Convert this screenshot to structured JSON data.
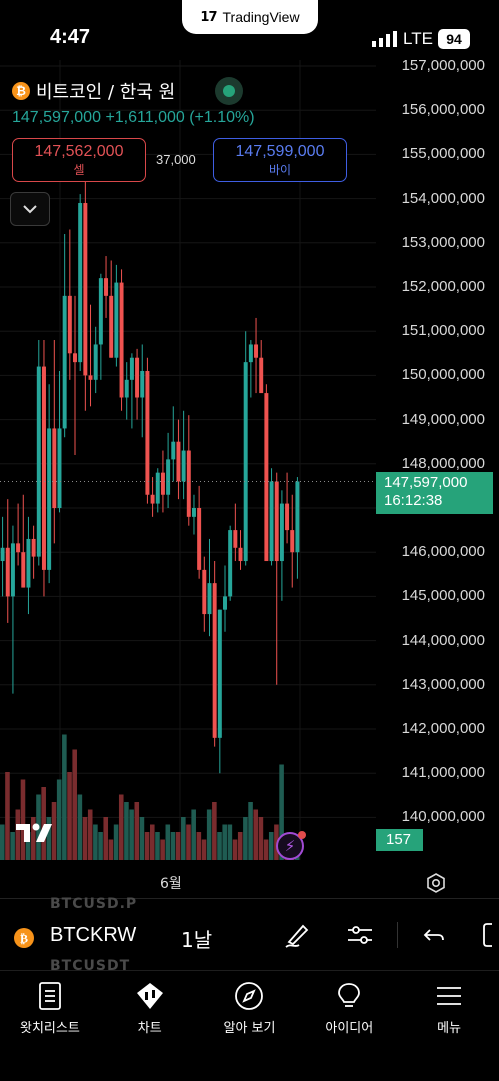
{
  "status": {
    "time": "4:47",
    "network": "LTE",
    "battery": "94"
  },
  "brand": {
    "logo": "17",
    "name": "TradingView"
  },
  "symbol": {
    "coin_glyph": "₿",
    "title": "비트코인 / 한국 원",
    "price": "147,597,000",
    "change": "+1,611,000 (+1.10%)",
    "market_status": "open"
  },
  "quote": {
    "sell_price": "147,562,000",
    "sell_label": "셀",
    "spread": "37,000",
    "buy_price": "147,599,000",
    "buy_label": "바이"
  },
  "axis": {
    "ticks": [
      "157,000,000",
      "156,000,000",
      "155,000,000",
      "154,000,000",
      "153,000,000",
      "152,000,000",
      "151,000,000",
      "150,000,000",
      "149,000,000",
      "148,000,000",
      "146,000,000",
      "145,000,000",
      "144,000,000",
      "143,000,000",
      "142,000,000",
      "141,000,000",
      "140,000,000"
    ],
    "current_price": "147,597,000",
    "countdown": "16:12:38",
    "volume_value": "157",
    "month_label": "6월"
  },
  "colors": {
    "up": "#26a69a",
    "down": "#ef5350",
    "sell": "#e25256",
    "buy": "#5a7cf0"
  },
  "chart_data": {
    "type": "candlestick",
    "ylim": [
      139600000,
      157300000
    ],
    "candles": [
      {
        "o": 145800000,
        "h": 146800000,
        "l": 145000000,
        "c": 146100000
      },
      {
        "o": 146100000,
        "h": 147200000,
        "l": 144400000,
        "c": 145000000
      },
      {
        "o": 145000000,
        "h": 146600000,
        "l": 142800000,
        "c": 146200000
      },
      {
        "o": 146200000,
        "h": 147100000,
        "l": 145700000,
        "c": 146000000
      },
      {
        "o": 146000000,
        "h": 147300000,
        "l": 145200000,
        "c": 145200000
      },
      {
        "o": 145200000,
        "h": 146800000,
        "l": 144600000,
        "c": 146300000
      },
      {
        "o": 146300000,
        "h": 146600000,
        "l": 145400000,
        "c": 145900000
      },
      {
        "o": 145900000,
        "h": 150800000,
        "l": 145700000,
        "c": 150200000
      },
      {
        "o": 150200000,
        "h": 150800000,
        "l": 145000000,
        "c": 145600000
      },
      {
        "o": 145600000,
        "h": 149800000,
        "l": 145300000,
        "c": 148800000
      },
      {
        "o": 148800000,
        "h": 150800000,
        "l": 146200000,
        "c": 147000000
      },
      {
        "o": 147000000,
        "h": 150100000,
        "l": 146900000,
        "c": 148800000
      },
      {
        "o": 148800000,
        "h": 153200000,
        "l": 148600000,
        "c": 151800000
      },
      {
        "o": 151800000,
        "h": 153300000,
        "l": 149900000,
        "c": 150500000
      },
      {
        "o": 150500000,
        "h": 151800000,
        "l": 148200000,
        "c": 150300000
      },
      {
        "o": 150300000,
        "h": 154100000,
        "l": 150100000,
        "c": 153900000
      },
      {
        "o": 153900000,
        "h": 154600000,
        "l": 149200000,
        "c": 150000000
      },
      {
        "o": 150000000,
        "h": 151600000,
        "l": 149300000,
        "c": 149900000
      },
      {
        "o": 149900000,
        "h": 151100000,
        "l": 149600000,
        "c": 150700000
      },
      {
        "o": 150700000,
        "h": 152300000,
        "l": 149900000,
        "c": 152200000
      },
      {
        "o": 152200000,
        "h": 152700000,
        "l": 151300000,
        "c": 151800000
      },
      {
        "o": 151800000,
        "h": 152600000,
        "l": 150400000,
        "c": 150400000
      },
      {
        "o": 150400000,
        "h": 152500000,
        "l": 150200000,
        "c": 152100000
      },
      {
        "o": 152100000,
        "h": 152400000,
        "l": 149200000,
        "c": 149500000
      },
      {
        "o": 149500000,
        "h": 150300000,
        "l": 149000000,
        "c": 149900000
      },
      {
        "o": 149900000,
        "h": 150500000,
        "l": 148800000,
        "c": 150400000
      },
      {
        "o": 150400000,
        "h": 150600000,
        "l": 149000000,
        "c": 149500000
      },
      {
        "o": 149500000,
        "h": 150700000,
        "l": 148600000,
        "c": 150100000
      },
      {
        "o": 150100000,
        "h": 150400000,
        "l": 147100000,
        "c": 147300000
      },
      {
        "o": 147300000,
        "h": 147700000,
        "l": 146800000,
        "c": 147100000
      },
      {
        "o": 147100000,
        "h": 147900000,
        "l": 146900000,
        "c": 147800000
      },
      {
        "o": 147800000,
        "h": 148300000,
        "l": 146900000,
        "c": 147300000
      },
      {
        "o": 147300000,
        "h": 148700000,
        "l": 147000000,
        "c": 148100000
      },
      {
        "o": 148100000,
        "h": 149300000,
        "l": 147600000,
        "c": 148500000
      },
      {
        "o": 148500000,
        "h": 149000000,
        "l": 147200000,
        "c": 147600000
      },
      {
        "o": 147600000,
        "h": 149200000,
        "l": 147200000,
        "c": 148300000
      },
      {
        "o": 148300000,
        "h": 149100000,
        "l": 146600000,
        "c": 146800000
      },
      {
        "o": 146800000,
        "h": 147300000,
        "l": 146400000,
        "c": 147000000
      },
      {
        "o": 147000000,
        "h": 147500000,
        "l": 145400000,
        "c": 145600000
      },
      {
        "o": 145600000,
        "h": 145900000,
        "l": 144200000,
        "c": 144600000
      },
      {
        "o": 144600000,
        "h": 146300000,
        "l": 144100000,
        "c": 145300000
      },
      {
        "o": 145300000,
        "h": 145800000,
        "l": 141600000,
        "c": 141800000
      },
      {
        "o": 141800000,
        "h": 144700000,
        "l": 141000000,
        "c": 144700000
      },
      {
        "o": 144700000,
        "h": 145700000,
        "l": 144200000,
        "c": 145000000
      },
      {
        "o": 145000000,
        "h": 146600000,
        "l": 144900000,
        "c": 146500000
      },
      {
        "o": 146500000,
        "h": 147100000,
        "l": 145800000,
        "c": 146100000
      },
      {
        "o": 146100000,
        "h": 146500000,
        "l": 145600000,
        "c": 145800000
      },
      {
        "o": 145800000,
        "h": 151000000,
        "l": 145700000,
        "c": 150300000
      },
      {
        "o": 150300000,
        "h": 150800000,
        "l": 149500000,
        "c": 150700000
      },
      {
        "o": 150700000,
        "h": 151300000,
        "l": 149600000,
        "c": 150400000
      },
      {
        "o": 150400000,
        "h": 150800000,
        "l": 149700000,
        "c": 149600000
      },
      {
        "o": 149600000,
        "h": 149800000,
        "l": 145800000,
        "c": 145800000
      },
      {
        "o": 145800000,
        "h": 147900000,
        "l": 145700000,
        "c": 147600000
      },
      {
        "o": 147600000,
        "h": 147800000,
        "l": 143000000,
        "c": 145800000
      },
      {
        "o": 145800000,
        "h": 147400000,
        "l": 144900000,
        "c": 147100000
      },
      {
        "o": 147100000,
        "h": 147800000,
        "l": 146200000,
        "c": 146500000
      },
      {
        "o": 146500000,
        "h": 147300000,
        "l": 145200000,
        "c": 146000000
      },
      {
        "o": 146000000,
        "h": 147700000,
        "l": 145400000,
        "c": 147600000
      }
    ],
    "volume": [
      25,
      60,
      20,
      35,
      55,
      20,
      30,
      45,
      50,
      30,
      40,
      55,
      85,
      60,
      75,
      45,
      30,
      35,
      25,
      20,
      30,
      15,
      25,
      45,
      40,
      35,
      40,
      30,
      20,
      25,
      20,
      15,
      25,
      20,
      20,
      30,
      25,
      35,
      20,
      15,
      35,
      40,
      20,
      25,
      25,
      15,
      20,
      30,
      40,
      35,
      30,
      15,
      20,
      25,
      65,
      15,
      10,
      8
    ],
    "volume_ylim": [
      0,
      100
    ]
  },
  "toolbar": {
    "ghost_top": "BTCUSD.P",
    "ghost_bottom": "BTCUSDT",
    "symbol": "BTCKRW",
    "interval": "1날"
  },
  "nav": [
    {
      "label": "왓치리스트",
      "icon": "watchlist-icon"
    },
    {
      "label": "차트",
      "icon": "chart-icon"
    },
    {
      "label": "알아 보기",
      "icon": "compass-icon"
    },
    {
      "label": "아이디어",
      "icon": "lightbulb-icon"
    },
    {
      "label": "메뉴",
      "icon": "menu-icon"
    }
  ]
}
